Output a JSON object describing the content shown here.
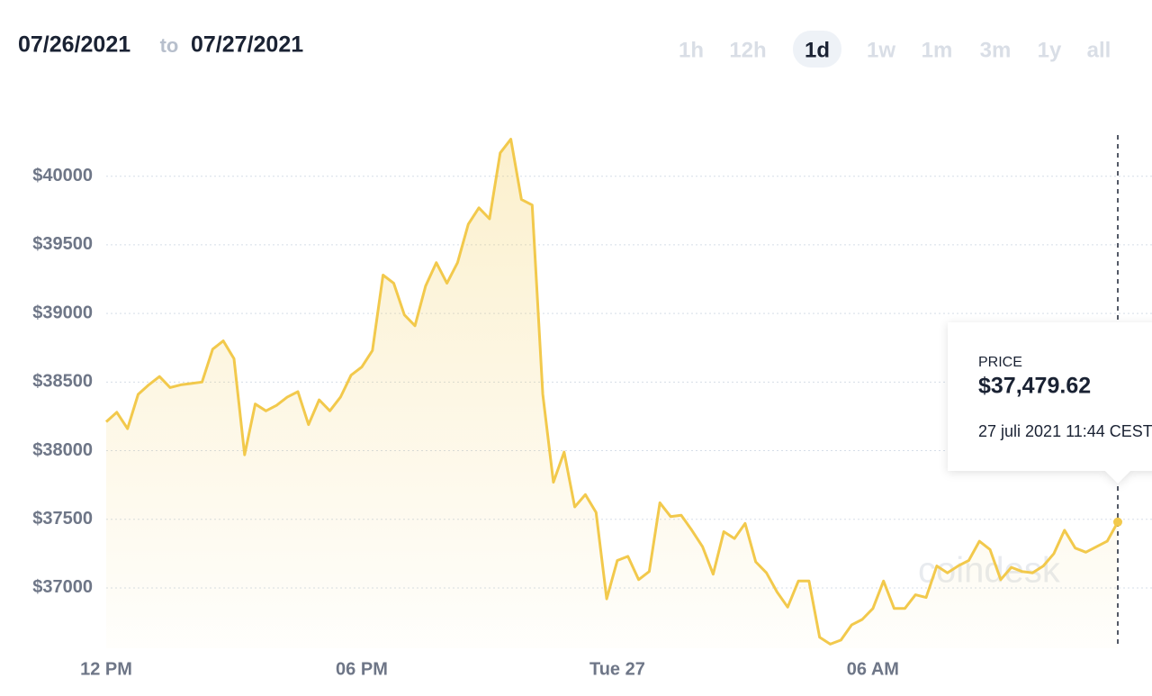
{
  "header": {
    "from": "07/26/2021",
    "to_word": "to",
    "to": "07/27/2021",
    "ranges": [
      "1h",
      "12h",
      "1d",
      "1w",
      "1m",
      "3m",
      "1y",
      "all"
    ],
    "selected_range_index": 2
  },
  "chart_data": {
    "type": "line",
    "area": true,
    "color": "#f2c94c",
    "grid": true,
    "categories": [
      "12 PM",
      null,
      null,
      null,
      null,
      null,
      null,
      null,
      null,
      null,
      null,
      null,
      null,
      null,
      null,
      null,
      null,
      null,
      null,
      null,
      null,
      null,
      null,
      null,
      "06 PM",
      null,
      null,
      null,
      null,
      null,
      null,
      null,
      null,
      null,
      null,
      null,
      null,
      null,
      null,
      null,
      null,
      null,
      null,
      null,
      null,
      null,
      null,
      null,
      "Tue 27",
      null,
      null,
      null,
      null,
      null,
      null,
      null,
      null,
      null,
      null,
      null,
      null,
      null,
      null,
      null,
      null,
      null,
      null,
      null,
      null,
      null,
      null,
      null,
      "06 AM",
      null,
      null,
      null,
      null,
      null,
      null,
      null,
      null,
      null,
      null,
      null,
      null,
      null,
      null,
      null,
      null,
      null,
      null,
      null,
      null,
      null,
      null,
      null
    ],
    "values": [
      38210,
      38280,
      38160,
      38410,
      38480,
      38540,
      38460,
      38480,
      38490,
      38500,
      38740,
      38800,
      38670,
      37970,
      38340,
      38290,
      38330,
      38390,
      38430,
      38190,
      38370,
      38290,
      38390,
      38550,
      38610,
      38730,
      39280,
      39220,
      38990,
      38910,
      39200,
      39370,
      39220,
      39370,
      39650,
      39770,
      39690,
      40170,
      40270,
      39830,
      39790,
      38410,
      37770,
      37990,
      37590,
      37680,
      37550,
      36920,
      37200,
      37230,
      37060,
      37120,
      37620,
      37520,
      37530,
      37420,
      37300,
      37100,
      37410,
      37360,
      37470,
      37190,
      37110,
      36970,
      36860,
      37050,
      37050,
      36640,
      36590,
      36620,
      36730,
      36770,
      36850,
      37050,
      36850,
      36850,
      36950,
      36930,
      37160,
      37110,
      37160,
      37200,
      37340,
      37280,
      37060,
      37150,
      37120,
      37110,
      37160,
      37250,
      37420,
      37290,
      37260,
      37300,
      37340,
      37480
    ],
    "ylim": [
      36560,
      40300
    ],
    "yticks": [
      {
        "value": 37000,
        "label": "$37000"
      },
      {
        "value": 37500,
        "label": "$37500"
      },
      {
        "value": 38000,
        "label": "$38000"
      },
      {
        "value": 38500,
        "label": "$38500"
      },
      {
        "value": 39000,
        "label": "$39000"
      },
      {
        "value": 39500,
        "label": "$39500"
      },
      {
        "value": 40000,
        "label": "$40000"
      }
    ],
    "tooltip": {
      "label": "PRICE",
      "value": "$37,479.62",
      "time": "27 juli 2021 11:44 CEST"
    },
    "watermark": "coindesk"
  }
}
